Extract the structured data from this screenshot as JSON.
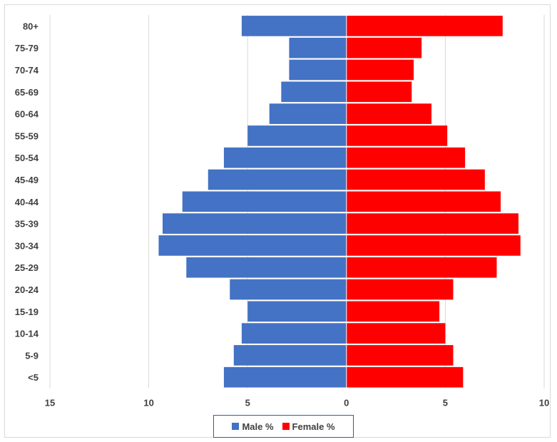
{
  "chart_data": {
    "type": "bar",
    "orientation": "horizontal",
    "layout": "population-pyramid",
    "categories": [
      "80+",
      "75-79",
      "70-74",
      "65-69",
      "60-64",
      "55-59",
      "50-54",
      "45-49",
      "40-44",
      "35-39",
      "30-34",
      "25-29",
      "20-24",
      "15-19",
      "10-14",
      "5-9",
      "<5"
    ],
    "series": [
      {
        "name": "Male %",
        "color": "#4472c4",
        "values": [
          5.3,
          2.9,
          2.9,
          3.3,
          3.9,
          5.0,
          6.2,
          7.0,
          8.3,
          9.3,
          9.5,
          8.1,
          5.9,
          5.0,
          5.3,
          5.7,
          6.2
        ]
      },
      {
        "name": "Female %",
        "color": "#ff0000",
        "values": [
          7.9,
          3.8,
          3.4,
          3.3,
          4.3,
          5.1,
          6.0,
          7.0,
          7.8,
          8.7,
          8.8,
          7.6,
          5.4,
          4.7,
          5.0,
          5.4,
          5.9
        ]
      }
    ],
    "x_ticks": [
      "15",
      "10",
      "5",
      "0",
      "5",
      "10"
    ],
    "xlim": [
      -15,
      10
    ],
    "grid": "vertical",
    "legend_position": "bottom"
  }
}
